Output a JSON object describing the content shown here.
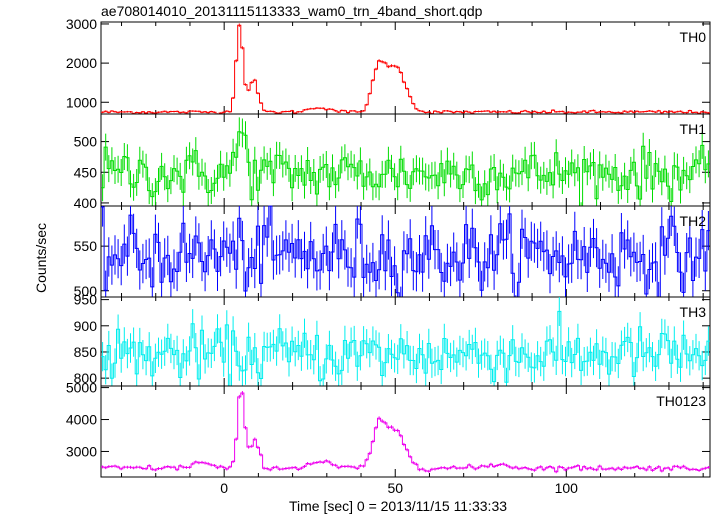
{
  "header": {
    "title": "ae708014010_20131115113333_wam0_trn_4band_short.qdp"
  },
  "xaxis": {
    "label": "Time [sec] 0 = 2013/11/15 11:33:33",
    "ticks": [
      0,
      50,
      100
    ],
    "range": [
      -36,
      142
    ]
  },
  "yaxis": {
    "label": "Counts/sec"
  },
  "chart_data": [
    {
      "type": "line",
      "name": "TH0",
      "color": "#ff0000",
      "ylim": [
        700,
        3050
      ],
      "yticks": [
        1000,
        2000,
        3000
      ],
      "baseline": 750,
      "noise": 22,
      "peaks": [
        {
          "t": 4.5,
          "amp": 2250,
          "w": 1.0
        },
        {
          "t": 8.5,
          "amp": 850,
          "w": 1.3
        },
        {
          "t": 28,
          "amp": 120,
          "w": 3.0
        },
        {
          "t": 45,
          "amp": 1050,
          "w": 1.8
        },
        {
          "t": 49,
          "amp": 1000,
          "w": 2.2
        },
        {
          "t": 52.5,
          "amp": 550,
          "w": 2.0
        }
      ]
    },
    {
      "type": "line",
      "name": "TH1",
      "color": "#00dd00",
      "ylim": [
        395,
        545
      ],
      "yticks": [
        400,
        450,
        500
      ],
      "baseline": 448,
      "noise": 22,
      "peaks": [
        {
          "t": 5,
          "amp": 70,
          "w": 1.2
        }
      ]
    },
    {
      "type": "line",
      "name": "TH2",
      "color": "#0000ff",
      "ylim": [
        493,
        595
      ],
      "yticks": [
        500,
        550
      ],
      "baseline": 540,
      "noise": 22,
      "peaks": []
    },
    {
      "type": "line",
      "name": "TH3",
      "color": "#00eeee",
      "ylim": [
        785,
        955
      ],
      "yticks": [
        800,
        850,
        900,
        950
      ],
      "baseline": 845,
      "noise": 28,
      "peaks": []
    },
    {
      "type": "line",
      "name": "TH0123",
      "color": "#ee00ee",
      "ylim": [
        2200,
        5050
      ],
      "yticks": [
        3000,
        4000,
        5000
      ],
      "baseline": 2480,
      "noise": 45,
      "peaks": [
        {
          "t": 5,
          "amp": 2550,
          "w": 1.0
        },
        {
          "t": 9,
          "amp": 850,
          "w": 1.3
        },
        {
          "t": -7,
          "amp": 180,
          "w": 2.5
        },
        {
          "t": 28,
          "amp": 200,
          "w": 3.0
        },
        {
          "t": 45,
          "amp": 1200,
          "w": 1.8
        },
        {
          "t": 49,
          "amp": 1050,
          "w": 2.2
        },
        {
          "t": 52.5,
          "amp": 500,
          "w": 2.0
        },
        {
          "t": 80,
          "amp": 120,
          "w": 3.0
        }
      ]
    }
  ]
}
